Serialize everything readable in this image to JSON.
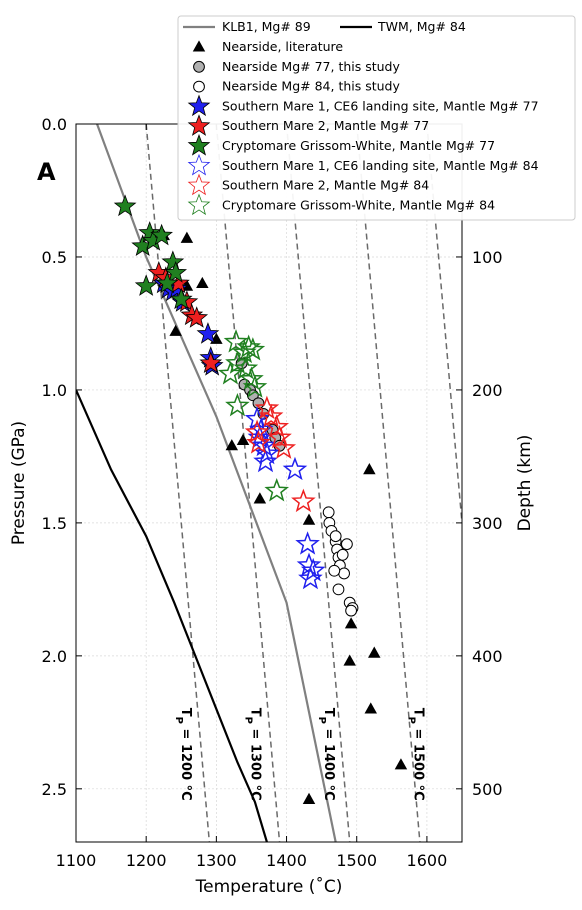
{
  "chart_data": {
    "type": "scatter",
    "panel_label": "A",
    "xlabel": "Temperature (˚C)",
    "ylabel": "Pressure (GPa)",
    "ylabel_right": "Depth (km)",
    "xlim": [
      1100,
      1650
    ],
    "ylim": [
      0.0,
      2.7
    ],
    "y_inverted": true,
    "grid": true,
    "x_ticks": [
      1100,
      1200,
      1300,
      1400,
      1500,
      1600
    ],
    "y_ticks": [
      0.0,
      0.5,
      1.0,
      1.5,
      2.0,
      2.5
    ],
    "y_tick_labels": [
      "0.0",
      "0.5",
      "1.0",
      "1.5",
      "2.0",
      "2.5"
    ],
    "depth_ticks": [
      {
        "pressure": 0.5,
        "label": "100"
      },
      {
        "pressure": 1.0,
        "label": "200"
      },
      {
        "pressure": 1.5,
        "label": "300"
      },
      {
        "pressure": 2.0,
        "label": "400"
      },
      {
        "pressure": 2.5,
        "label": "500"
      }
    ],
    "lines": [
      {
        "name": "KLB1, Mg# 89",
        "color": "#808080",
        "points": [
          [
            1130,
            0.0
          ],
          [
            1200,
            0.5
          ],
          [
            1300,
            1.1
          ],
          [
            1400,
            1.8
          ],
          [
            1470,
            2.7
          ]
        ]
      },
      {
        "name": "TWM, Mg# 84",
        "color": "#000000",
        "points": [
          [
            1100,
            1.0
          ],
          [
            1150,
            1.3
          ],
          [
            1200,
            1.55
          ],
          [
            1240,
            1.8
          ],
          [
            1270,
            2.0
          ],
          [
            1300,
            2.2
          ],
          [
            1330,
            2.4
          ],
          [
            1355,
            2.55
          ],
          [
            1372,
            2.7
          ]
        ]
      }
    ],
    "adiabats": [
      {
        "label": "T",
        "subscript": "P",
        "value_text": " = 1200 °C",
        "points": [
          [
            1200,
            0.0
          ],
          [
            1290,
            2.7
          ]
        ]
      },
      {
        "label": "T",
        "subscript": "P",
        "value_text": " = 1300 °C",
        "points": [
          [
            1300,
            0.0
          ],
          [
            1390,
            2.7
          ]
        ]
      },
      {
        "label": "T",
        "subscript": "P",
        "value_text": " = 1400 °C",
        "points": [
          [
            1400,
            0.0
          ],
          [
            1490,
            2.7
          ]
        ]
      },
      {
        "label": "T",
        "subscript": "P",
        "value_text": " = 1500 °C",
        "points": [
          [
            1500,
            0.0
          ],
          [
            1590,
            2.7
          ]
        ]
      },
      {
        "label": "",
        "subscript": "",
        "value_text": "",
        "points": [
          [
            1600,
            0.0
          ],
          [
            1650,
            1.5
          ]
        ]
      }
    ],
    "adiabat_label_positions": [
      {
        "x": 1251,
        "y": 2.37
      },
      {
        "x": 1350,
        "y": 2.37
      },
      {
        "x": 1455,
        "y": 2.37
      },
      {
        "x": 1582,
        "y": 2.37
      }
    ],
    "series": [
      {
        "name": "Nearside, literature",
        "marker": "triangle",
        "fill": "#000000",
        "stroke": "#000000",
        "points": [
          [
            1225,
            0.42
          ],
          [
            1258,
            0.43
          ],
          [
            1230,
            0.61
          ],
          [
            1258,
            0.61
          ],
          [
            1280,
            0.6
          ],
          [
            1242,
            0.78
          ],
          [
            1300,
            0.81
          ],
          [
            1338,
            1.19
          ],
          [
            1322,
            1.21
          ],
          [
            1362,
            1.41
          ],
          [
            1432,
            1.49
          ],
          [
            1518,
            1.3
          ],
          [
            1492,
            1.88
          ],
          [
            1490,
            2.02
          ],
          [
            1525,
            1.99
          ],
          [
            1520,
            2.2
          ],
          [
            1563,
            2.41
          ],
          [
            1432,
            2.54
          ]
        ]
      },
      {
        "name": "Nearside Mg# 77, this study",
        "marker": "circle",
        "fill": "#b0b0b0",
        "stroke": "#000000",
        "points": [
          [
            1336,
            0.9
          ],
          [
            1340,
            0.98
          ],
          [
            1348,
            1.0
          ],
          [
            1352,
            1.02
          ],
          [
            1360,
            1.05
          ],
          [
            1367,
            1.09
          ],
          [
            1380,
            1.15
          ],
          [
            1384,
            1.18
          ],
          [
            1390,
            1.21
          ]
        ]
      },
      {
        "name": "Nearside Mg# 84, this study",
        "marker": "circle",
        "fill": "#ffffff",
        "stroke": "#000000",
        "points": [
          [
            1460,
            1.46
          ],
          [
            1461,
            1.5
          ],
          [
            1464,
            1.53
          ],
          [
            1470,
            1.57
          ],
          [
            1472,
            1.6
          ],
          [
            1474,
            1.63
          ],
          [
            1476,
            1.66
          ],
          [
            1482,
            1.69
          ],
          [
            1474,
            1.75
          ],
          [
            1490,
            1.8
          ],
          [
            1494,
            1.82
          ],
          [
            1492,
            1.83
          ],
          [
            1468,
            1.68
          ],
          [
            1470,
            1.55
          ],
          [
            1480,
            1.62
          ],
          [
            1486,
            1.58
          ]
        ]
      },
      {
        "name": "Southern Mare 1, CE6 landing site, Mantle Mg# 77",
        "marker": "star",
        "fill": "#2020ee",
        "stroke": "#000000",
        "points": [
          [
            1225,
            0.6
          ],
          [
            1232,
            0.62
          ],
          [
            1238,
            0.63
          ],
          [
            1244,
            0.62
          ],
          [
            1252,
            0.67
          ],
          [
            1288,
            0.79
          ],
          [
            1292,
            0.88
          ],
          [
            1294,
            0.91
          ]
        ]
      },
      {
        "name": "Southern Mare 2, Mantle Mg# 77",
        "marker": "star",
        "fill": "#ee2020",
        "stroke": "#000000",
        "points": [
          [
            1218,
            0.56
          ],
          [
            1228,
            0.58
          ],
          [
            1246,
            0.6
          ],
          [
            1258,
            0.67
          ],
          [
            1265,
            0.72
          ],
          [
            1272,
            0.73
          ],
          [
            1292,
            0.9
          ]
        ]
      },
      {
        "name": "Cryptomare Grissom-White, Mantle Mg# 77",
        "marker": "star",
        "fill": "#208020",
        "stroke": "#000000",
        "points": [
          [
            1170,
            0.31
          ],
          [
            1195,
            0.46
          ],
          [
            1205,
            0.41
          ],
          [
            1210,
            0.44
          ],
          [
            1222,
            0.42
          ],
          [
            1200,
            0.61
          ],
          [
            1238,
            0.52
          ],
          [
            1242,
            0.56
          ],
          [
            1230,
            0.6
          ],
          [
            1250,
            0.66
          ]
        ]
      },
      {
        "name": "Southern Mare 1, CE6 landing site, Mantle Mg# 84",
        "marker": "star-open",
        "fill": "none",
        "stroke": "#2020ee",
        "points": [
          [
            1358,
            1.11
          ],
          [
            1364,
            1.15
          ],
          [
            1362,
            1.18
          ],
          [
            1368,
            1.21
          ],
          [
            1372,
            1.24
          ],
          [
            1370,
            1.27
          ],
          [
            1412,
            1.3
          ],
          [
            1430,
            1.58
          ],
          [
            1432,
            1.66
          ],
          [
            1438,
            1.68
          ],
          [
            1434,
            1.71
          ]
        ]
      },
      {
        "name": "Southern Mare 2, Mantle Mg# 84",
        "marker": "star-open",
        "fill": "none",
        "stroke": "#ee2020",
        "points": [
          [
            1372,
            1.07
          ],
          [
            1378,
            1.1
          ],
          [
            1386,
            1.14
          ],
          [
            1358,
            1.16
          ],
          [
            1360,
            1.2
          ],
          [
            1390,
            1.18
          ],
          [
            1396,
            1.22
          ],
          [
            1424,
            1.42
          ]
        ]
      },
      {
        "name": "Cryptomare Grissom-White, Mantle Mg# 84",
        "marker": "star-open",
        "fill": "none",
        "stroke": "#208020",
        "points": [
          [
            1328,
            0.82
          ],
          [
            1340,
            0.86
          ],
          [
            1346,
            0.84
          ],
          [
            1352,
            0.85
          ],
          [
            1330,
            0.9
          ],
          [
            1320,
            0.94
          ],
          [
            1342,
            0.92
          ],
          [
            1350,
            0.96
          ],
          [
            1355,
            0.99
          ],
          [
            1330,
            1.06
          ],
          [
            1386,
            1.38
          ]
        ]
      }
    ],
    "legend": {
      "placement": "top-right",
      "entries": [
        {
          "label": "KLB1, Mg# 89",
          "kind": "line",
          "color": "#808080"
        },
        {
          "label": "TWM, Mg# 84",
          "kind": "line",
          "color": "#000000"
        },
        {
          "label": "Nearside, literature",
          "kind": "triangle",
          "fill": "#000000",
          "stroke": "#000000"
        },
        {
          "label": "Nearside Mg# 77, this study",
          "kind": "circle",
          "fill": "#b0b0b0",
          "stroke": "#000000"
        },
        {
          "label": "Nearside Mg# 84, this study",
          "kind": "circle",
          "fill": "#ffffff",
          "stroke": "#000000"
        },
        {
          "label": "Southern Mare 1, CE6 landing site, Mantle Mg# 77",
          "kind": "star",
          "fill": "#2020ee",
          "stroke": "#000000"
        },
        {
          "label": "Southern Mare 2, Mantle Mg# 77",
          "kind": "star",
          "fill": "#ee2020",
          "stroke": "#000000"
        },
        {
          "label": "Cryptomare Grissom-White, Mantle Mg# 77",
          "kind": "star",
          "fill": "#208020",
          "stroke": "#000000"
        },
        {
          "label": "Southern Mare 1, CE6 landing site, Mantle Mg# 84",
          "kind": "star",
          "fill": "none",
          "stroke": "#2020ee"
        },
        {
          "label": "Southern Mare 2, Mantle Mg# 84",
          "kind": "star",
          "fill": "none",
          "stroke": "#ee2020"
        },
        {
          "label": "Cryptomare Grissom-White, Mantle Mg# 84",
          "kind": "star",
          "fill": "none",
          "stroke": "#208020"
        }
      ]
    }
  }
}
